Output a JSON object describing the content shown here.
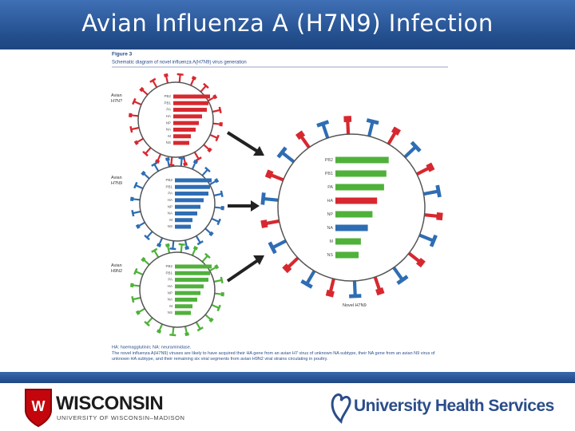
{
  "header": {
    "title": "Avian Influenza A (H7N9) Infection"
  },
  "figure": {
    "label": "Figure 3",
    "caption": "Schematic diagram of novel influenza A(H7N9) virus generation",
    "viruses": [
      {
        "label": "Avian H7N?",
        "spike_colors": [
          "#d7282f",
          "#d7282f"
        ],
        "segments": [
          {
            "label": "PB2",
            "color": "#d7282f"
          },
          {
            "label": "PB1",
            "color": "#d7282f"
          },
          {
            "label": "PA",
            "color": "#d7282f"
          },
          {
            "label": "HA",
            "color": "#d7282f"
          },
          {
            "label": "NP",
            "color": "#d7282f"
          },
          {
            "label": "NA",
            "color": "#d7282f"
          },
          {
            "label": "M",
            "color": "#d7282f"
          },
          {
            "label": "NS",
            "color": "#d7282f"
          }
        ]
      },
      {
        "label": "Avian H?N9",
        "spike_colors": [
          "#2e6db4",
          "#2e6db4"
        ],
        "segments": [
          {
            "label": "PB2",
            "color": "#2e6db4"
          },
          {
            "label": "PB1",
            "color": "#2e6db4"
          },
          {
            "label": "PA",
            "color": "#2e6db4"
          },
          {
            "label": "HA",
            "color": "#2e6db4"
          },
          {
            "label": "NP",
            "color": "#2e6db4"
          },
          {
            "label": "NA",
            "color": "#2e6db4"
          },
          {
            "label": "M",
            "color": "#2e6db4"
          },
          {
            "label": "NS",
            "color": "#2e6db4"
          }
        ]
      },
      {
        "label": "Avian H9N2",
        "spike_colors": [
          "#4fb13a",
          "#4fb13a"
        ],
        "segments": [
          {
            "label": "PB2",
            "color": "#4fb13a"
          },
          {
            "label": "PB1",
            "color": "#4fb13a"
          },
          {
            "label": "PA",
            "color": "#4fb13a"
          },
          {
            "label": "HA",
            "color": "#4fb13a"
          },
          {
            "label": "NP",
            "color": "#4fb13a"
          },
          {
            "label": "NA",
            "color": "#4fb13a"
          },
          {
            "label": "M",
            "color": "#4fb13a"
          },
          {
            "label": "NS",
            "color": "#4fb13a"
          }
        ]
      },
      {
        "label": "Novel H7N9",
        "spike_colors": [
          "#d7282f",
          "#2e6db4"
        ],
        "segments": [
          {
            "label": "PB2",
            "color": "#4fb13a"
          },
          {
            "label": "PB1",
            "color": "#4fb13a"
          },
          {
            "label": "PA",
            "color": "#4fb13a"
          },
          {
            "label": "HA",
            "color": "#d7282f"
          },
          {
            "label": "NP",
            "color": "#4fb13a"
          },
          {
            "label": "NA",
            "color": "#2e6db4"
          },
          {
            "label": "M",
            "color": "#4fb13a"
          },
          {
            "label": "NS",
            "color": "#4fb13a"
          }
        ]
      }
    ],
    "abbreviations": "HA: haemagglutinin; NA: neuraminidase.",
    "note": "The novel influenza A(H7N9) viruses are likely to have acquired their HA gene from an avian H7 virus of unknown NA subtype, their NA gene from an avian N9 virus of unknown HA subtype, and their remaining six viral segments from avian H9N2 viral strains circulating in poultry."
  },
  "footer": {
    "left_logo": "WISCONSIN",
    "left_sub": "UNIVERSITY OF WISCONSIN–MADISON",
    "right_logo": "University Health Services"
  }
}
